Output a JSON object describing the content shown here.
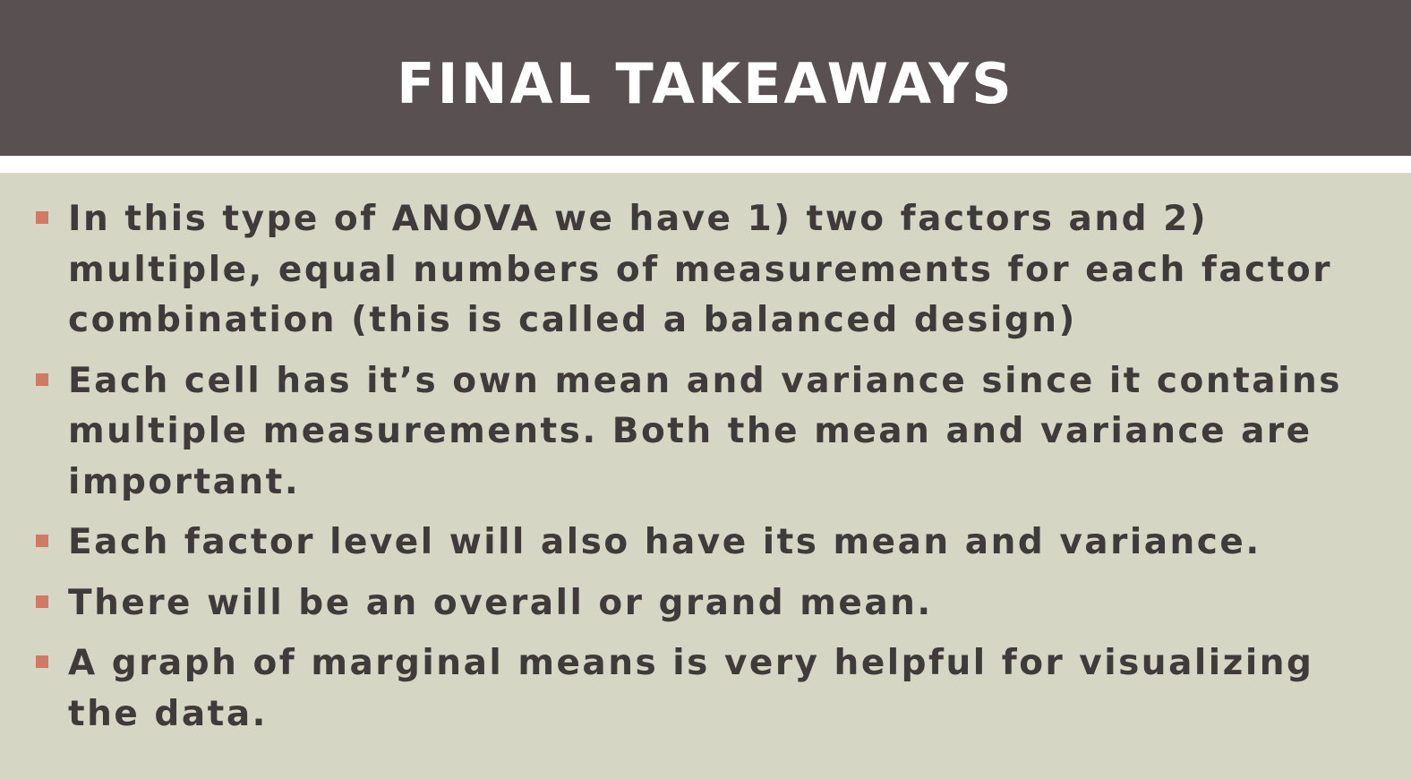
{
  "slide": {
    "title": "FINAL TAKEAWAYS",
    "bullets": [
      "In this type of ANOVA we have 1) two factors and 2) multiple, equal numbers of measurements for each factor combination (this is called a balanced design)",
      "Each cell has it’s own mean and variance since it contains multiple measurements. Both the mean and variance are important.",
      "Each factor level will also have its mean and variance.",
      "There will be an overall or grand mean.",
      "A graph of marginal means is very helpful for visualizing the data."
    ]
  },
  "colors": {
    "title_bar": "#595051",
    "content_bg": "#d5d7c4",
    "bullet_marker": "#d07a66",
    "body_text": "#3f3b3b"
  }
}
